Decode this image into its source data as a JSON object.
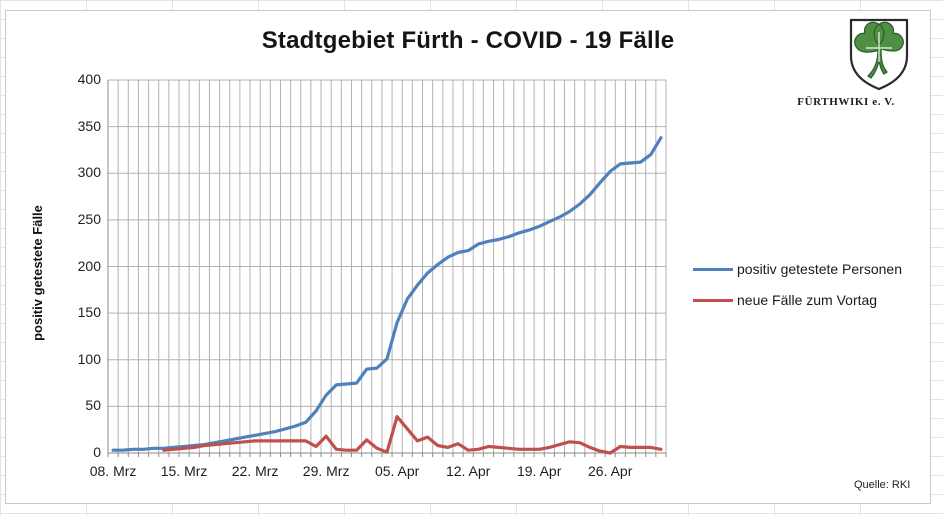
{
  "logo": {
    "caption": "FÜRTHWIKI e. V."
  },
  "source_label": "Quelle: RKI",
  "chart_data": {
    "type": "line",
    "title": "Stadtgebiet Fürth - COVID - 19 Fälle",
    "xlabel": "",
    "ylabel": "positiv getestete Fälle",
    "ylim": [
      0,
      400
    ],
    "y_ticks": [
      0,
      50,
      100,
      150,
      200,
      250,
      300,
      350,
      400
    ],
    "x_tick_labels": [
      "08. Mrz",
      "15. Mrz",
      "22. Mrz",
      "29. Mrz",
      "05. Apr",
      "12. Apr",
      "19. Apr",
      "26. Apr"
    ],
    "x_tick_positions": [
      0,
      7,
      14,
      21,
      28,
      35,
      42,
      49
    ],
    "grid": "both",
    "legend_position": "right",
    "dates": [
      "08.03",
      "09.03",
      "10.03",
      "11.03",
      "12.03",
      "13.03",
      "14.03",
      "15.03",
      "16.03",
      "17.03",
      "18.03",
      "19.03",
      "20.03",
      "21.03",
      "22.03",
      "23.03",
      "24.03",
      "25.03",
      "26.03",
      "27.03",
      "28.03",
      "29.03",
      "30.03",
      "31.03",
      "01.04",
      "02.04",
      "03.04",
      "04.04",
      "05.04",
      "06.04",
      "07.04",
      "08.04",
      "09.04",
      "10.04",
      "11.04",
      "12.04",
      "13.04",
      "14.04",
      "15.04",
      "16.04",
      "17.04",
      "18.04",
      "19.04",
      "20.04",
      "21.04",
      "22.04",
      "23.04",
      "24.04",
      "25.04",
      "26.04",
      "27.04",
      "28.04",
      "29.04",
      "30.04",
      "01.05"
    ],
    "series": [
      {
        "name": "positiv getestete Personen",
        "color": "#4F81BD",
        "start_index": 0,
        "values": [
          3,
          3,
          4,
          4,
          5,
          5,
          6,
          7,
          8,
          9,
          11,
          13,
          15,
          17,
          19,
          21,
          23,
          26,
          29,
          33,
          45,
          62,
          73,
          74,
          75,
          90,
          91,
          101,
          140,
          165,
          180,
          193,
          202,
          210,
          215,
          217,
          224,
          227,
          229,
          232,
          236,
          239,
          243,
          248,
          253,
          259,
          267,
          277,
          290,
          302,
          310,
          311,
          312,
          320,
          338
        ]
      },
      {
        "name": "neue Fälle zum Vortag",
        "color": "#C0504D",
        "start_index": 5,
        "values": [
          3,
          4,
          5,
          6,
          8,
          9,
          10,
          11,
          12,
          13,
          13,
          13,
          13,
          13,
          13,
          7,
          18,
          4,
          3,
          3,
          14,
          5,
          1,
          39,
          26,
          13,
          17,
          8,
          6,
          10,
          3,
          4,
          7,
          6,
          5,
          4,
          4,
          4,
          6,
          9,
          12,
          11,
          6,
          2,
          0,
          7,
          6,
          6,
          6,
          4
        ]
      }
    ]
  }
}
